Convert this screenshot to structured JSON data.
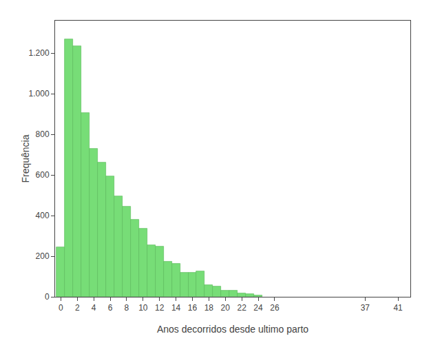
{
  "chart_data": {
    "type": "bar",
    "x": [
      0,
      1,
      2,
      3,
      4,
      5,
      6,
      7,
      8,
      9,
      10,
      11,
      12,
      13,
      14,
      15,
      16,
      17,
      18,
      19,
      20,
      21,
      22,
      23,
      24
    ],
    "values": [
      245,
      1270,
      1235,
      905,
      730,
      660,
      595,
      495,
      445,
      380,
      335,
      255,
      248,
      173,
      162,
      118,
      118,
      125,
      58,
      50,
      30,
      32,
      18,
      13,
      8
    ],
    "color": "#77DD77",
    "xlabel": "Anos decorridos desde ultimo parto",
    "ylabel": "Frequência",
    "xlim": [
      -0.7,
      42.5
    ],
    "xticks": [
      0,
      2,
      4,
      6,
      8,
      10,
      12,
      14,
      16,
      18,
      20,
      22,
      24,
      26,
      37,
      41
    ],
    "ylim": [
      0,
      1360
    ],
    "yticks": [
      0,
      200,
      400,
      600,
      800,
      {
        "value": 1000,
        "label": "1.000"
      },
      {
        "value": 1200,
        "label": "1.200"
      }
    ],
    "grid": false
  }
}
